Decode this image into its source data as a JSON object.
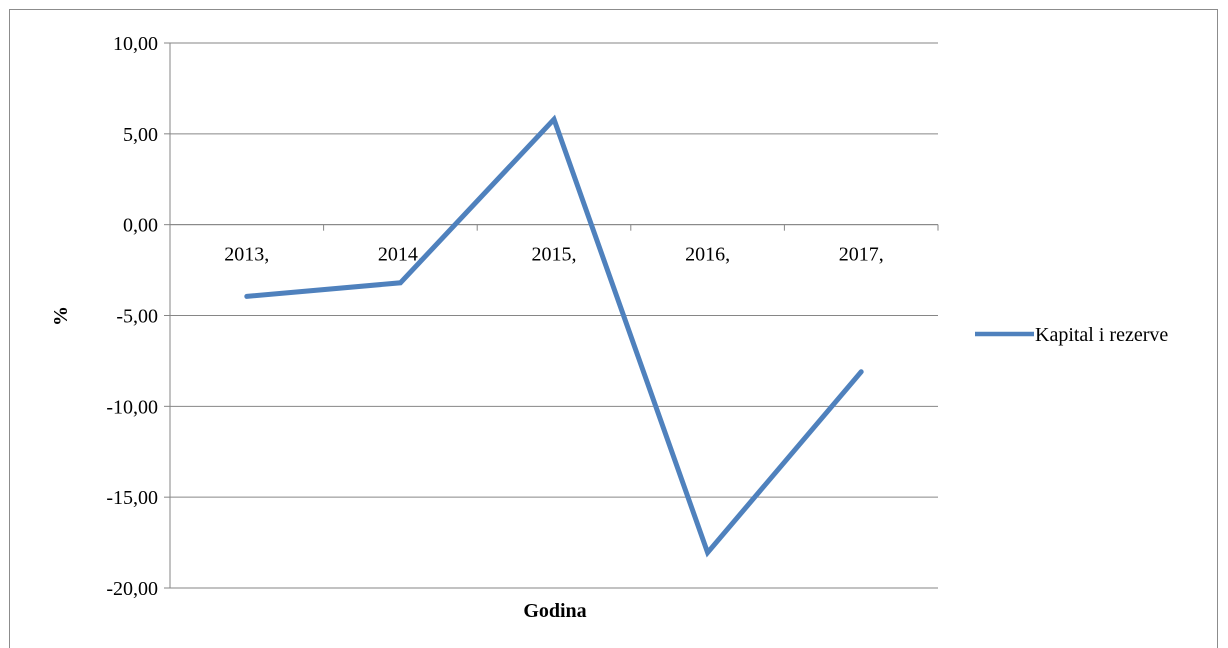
{
  "chart_data": {
    "type": "line",
    "title": "",
    "xlabel": "Godina",
    "ylabel": "%",
    "categories": [
      "2013,",
      "2014,",
      "2015,",
      "2016,",
      "2017,"
    ],
    "series": [
      {
        "name": "Kapital i rezerve",
        "color": "#4f81bd",
        "values": [
          -3.95,
          -3.2,
          5.8,
          -18.05,
          -8.1
        ]
      }
    ],
    "ylim": [
      -20,
      10
    ],
    "yticks": [
      10,
      5,
      0,
      -5,
      -10,
      -15,
      -20
    ],
    "ytick_labels": [
      "10,00",
      "5,00",
      "0,00",
      "-5,00",
      "-10,00",
      "-15,00",
      "-20,00"
    ],
    "grid": true,
    "legend_position": "right"
  }
}
